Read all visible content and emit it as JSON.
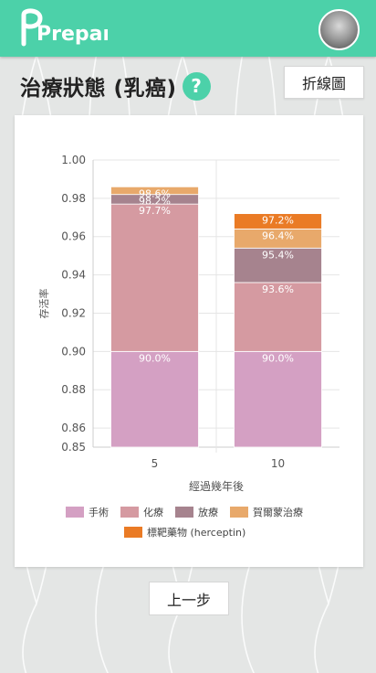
{
  "app": {
    "logo_text": "Prepare"
  },
  "header": {
    "title": "治療狀態 (乳癌)",
    "help_symbol": "?",
    "line_chart_button": "折線圖"
  },
  "footer": {
    "back_button": "上一步"
  },
  "colors": {
    "brand": "#4cd1a9",
    "surgery": "#d4a0c3",
    "chemo": "#d59aa1",
    "radiation": "#a6838e",
    "hormone": "#e8a96b",
    "targeted": "#ea7b25"
  },
  "chart_data": {
    "type": "bar",
    "stacked": true,
    "categories": [
      "5",
      "10"
    ],
    "xlabel": "經過幾年後",
    "ylabel": "存活率",
    "ylim": [
      0.85,
      1.0
    ],
    "yticks": [
      "1.00",
      "0.98",
      "0.96",
      "0.94",
      "0.92",
      "0.90",
      "0.88",
      "0.86",
      "0.85"
    ],
    "grid": true,
    "legend_position": "bottom",
    "series": [
      {
        "name": "手術",
        "color": "#d4a0c3",
        "cumulative": [
          0.9,
          0.9
        ],
        "labels": [
          "90.0%",
          "90.0%"
        ]
      },
      {
        "name": "化療",
        "color": "#d59aa1",
        "cumulative": [
          0.977,
          0.936
        ],
        "labels": [
          "97.7%",
          "93.6%"
        ]
      },
      {
        "name": "放療",
        "color": "#a6838e",
        "cumulative": [
          0.982,
          0.954
        ],
        "labels": [
          "98.2%",
          "95.4%"
        ]
      },
      {
        "name": "賀爾蒙治療",
        "color": "#e8a96b",
        "cumulative": [
          0.986,
          0.964
        ],
        "labels": [
          "98.6%",
          "96.4%"
        ]
      },
      {
        "name": "標靶藥物 (herceptin)",
        "color": "#ea7b25",
        "cumulative": [
          0.986,
          0.972
        ],
        "labels": [
          "",
          "97.2%"
        ]
      }
    ]
  }
}
